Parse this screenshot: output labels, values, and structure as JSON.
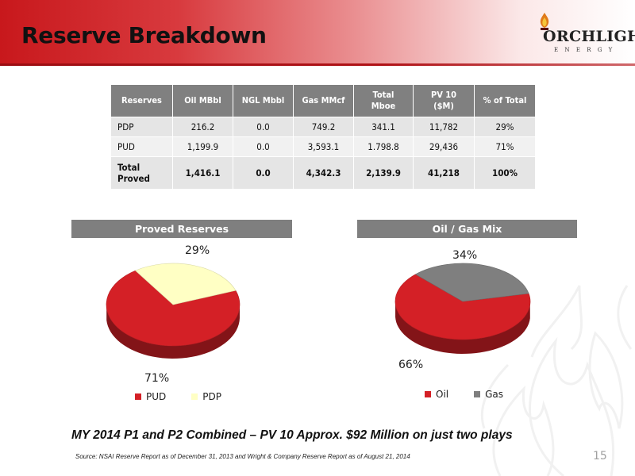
{
  "slide": {
    "title": "Reserve Breakdown",
    "page_number": "15",
    "headline": "MY 2014 P1 and P2 Combined – PV 10 Approx. $92 Million on just two plays",
    "source": "Source: NSAI Reserve Report as of December 31, 2013 and Wright & Company Reserve Report as of August 21, 2014"
  },
  "logo": {
    "word": "ORCHLIGHT",
    "initial": "T",
    "sub": "ENERGY"
  },
  "table": {
    "headers": [
      "Reserves",
      "Oil MBbl",
      "NGL Mbbl",
      "Gas MMcf",
      "Total Mboe",
      "PV 10 ($M)",
      "% of Total"
    ],
    "rows": [
      [
        "PDP",
        "216.2",
        "0.0",
        "749.2",
        "341.1",
        "11,782",
        "29%"
      ],
      [
        "PUD",
        "1,199.9",
        "0.0",
        "3,593.1",
        "1.798.8",
        "29,436",
        "71%"
      ],
      [
        "Total Proved",
        "1,416.1",
        "0.0",
        "4,342.3",
        "2,139.9",
        "41,218",
        "100%"
      ]
    ]
  },
  "chart_data": [
    {
      "type": "pie",
      "title": "Proved Reserves",
      "categories": [
        "PUD",
        "PDP"
      ],
      "values": [
        71,
        29
      ],
      "value_labels": [
        "71%",
        "29%"
      ],
      "colors": [
        "#d42026",
        "#ffffc4"
      ],
      "legend": "bottom"
    },
    {
      "type": "pie",
      "title": "Oil / Gas Mix",
      "categories": [
        "Oil",
        "Gas"
      ],
      "values": [
        66,
        34
      ],
      "value_labels": [
        "66%",
        "34%"
      ],
      "colors": [
        "#d42026",
        "#7f7f7f"
      ],
      "legend": "bottom"
    }
  ]
}
